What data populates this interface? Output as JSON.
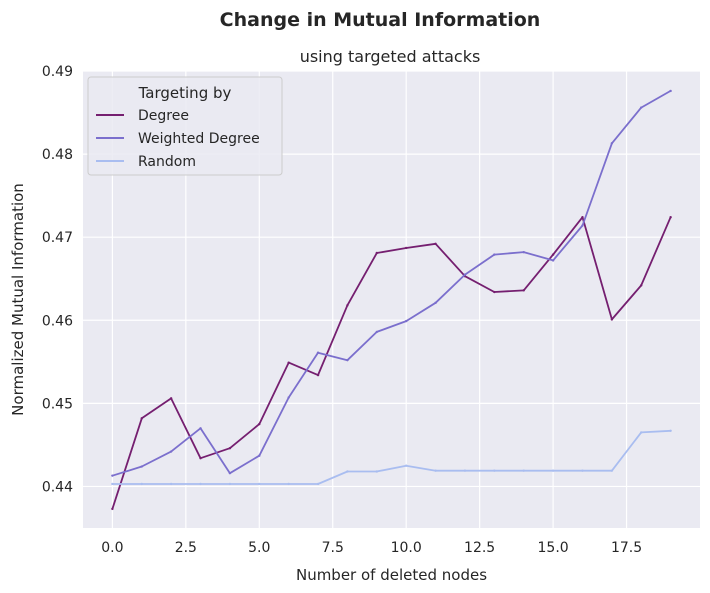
{
  "title": "Change in Mutual Information",
  "subtitle": "using targeted attacks",
  "chart_data": {
    "type": "line",
    "xlabel": "Number of deleted nodes",
    "ylabel": "Normalized Mutual Information",
    "xlim": [
      -1,
      20
    ],
    "ylim": [
      0.435,
      0.49
    ],
    "x_ticks": [
      0.0,
      2.5,
      5.0,
      7.5,
      10.0,
      12.5,
      15.0,
      17.5
    ],
    "x_tick_labels": [
      "0.0",
      "2.5",
      "5.0",
      "7.5",
      "10.0",
      "12.5",
      "15.0",
      "17.5"
    ],
    "y_ticks": [
      0.44,
      0.45,
      0.46,
      0.47,
      0.48,
      0.49
    ],
    "y_tick_labels": [
      "0.44",
      "0.45",
      "0.46",
      "0.47",
      "0.48",
      "0.49"
    ],
    "grid": true,
    "legend": {
      "title": "Targeting by",
      "placement": "top-left"
    },
    "x": [
      0,
      1,
      2,
      3,
      4,
      5,
      6,
      7,
      8,
      9,
      10,
      11,
      12,
      13,
      14,
      15,
      16,
      17,
      18,
      19
    ],
    "series": [
      {
        "name": "Degree",
        "color": "#751f70",
        "values": [
          0.4373,
          0.4482,
          0.4506,
          0.4434,
          0.4446,
          0.4475,
          0.4549,
          0.4534,
          0.4618,
          0.4681,
          0.4687,
          0.4692,
          0.4653,
          0.4634,
          0.4636,
          0.4679,
          0.4724,
          0.4601,
          0.4642,
          0.4724
        ]
      },
      {
        "name": "Weighted Degree",
        "color": "#7b6fcd",
        "values": [
          0.4413,
          0.4424,
          0.4442,
          0.447,
          0.4416,
          0.4437,
          0.4507,
          0.4561,
          0.4552,
          0.4586,
          0.4599,
          0.4621,
          0.4655,
          0.4679,
          0.4682,
          0.4672,
          0.4714,
          0.4813,
          0.4856,
          0.4876
        ]
      },
      {
        "name": "Random",
        "color": "#a9bdf0",
        "values": [
          0.4403,
          0.4403,
          0.4403,
          0.4403,
          0.4403,
          0.4403,
          0.4403,
          0.4403,
          0.4418,
          0.4418,
          0.4425,
          0.4419,
          0.4419,
          0.4419,
          0.4419,
          0.4419,
          0.4419,
          0.4419,
          0.4465,
          0.4467
        ]
      }
    ]
  }
}
